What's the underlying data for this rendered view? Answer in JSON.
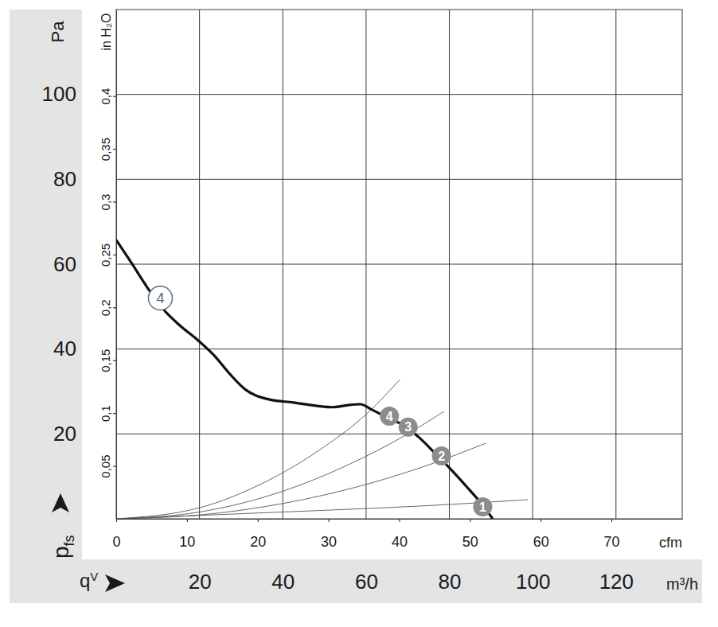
{
  "chart_data": {
    "type": "line",
    "y_unit": "Pa",
    "y_label": {
      "text": "p",
      "sub": "fs"
    },
    "y2_label": "in H₂O",
    "x_label": {
      "text": "q",
      "sub": "V"
    },
    "x_unit": "m³/h",
    "x2_unit": "cfm",
    "xlim": [
      0,
      135.9
    ],
    "xticks": [
      20,
      40,
      60,
      80,
      100,
      120
    ],
    "x2lim": [
      0,
      80
    ],
    "x2ticks": [
      0,
      10,
      20,
      30,
      40,
      50,
      60,
      70
    ],
    "ylim": [
      0,
      120
    ],
    "yticks": [
      20,
      40,
      60,
      80,
      100
    ],
    "y2lim": [
      0,
      0.4818
    ],
    "y2ticks": [
      {
        "value": 0.05,
        "label": "0,05"
      },
      {
        "value": 0.1,
        "label": "0,1"
      },
      {
        "value": 0.15,
        "label": "0,15"
      },
      {
        "value": 0.2,
        "label": "0,2"
      },
      {
        "value": 0.25,
        "label": "0,25"
      },
      {
        "value": 0.3,
        "label": "0,3"
      },
      {
        "value": 0.35,
        "label": "0,35"
      },
      {
        "value": 0.4,
        "label": "0,4"
      }
    ],
    "grid": true,
    "series": [
      {
        "color": "#111111",
        "x": [
          0,
          3.6,
          7.4,
          11.2,
          15.0,
          19.7,
          23.5,
          27.3,
          31.1,
          33.4,
          36.8,
          42.5,
          48.2,
          51.9,
          55.7,
          58.6,
          61.4,
          65.2,
          69.0,
          72.8,
          76.6,
          80.4,
          84.2,
          88.0,
          90.4
        ],
        "values": [
          65.7,
          60.4,
          54.6,
          49.5,
          45.8,
          42.0,
          38.5,
          34.1,
          30.4,
          29.1,
          28.1,
          27.4,
          26.6,
          26.3,
          26.8,
          27.0,
          25.7,
          23.8,
          22.0,
          19.1,
          15.4,
          11.6,
          7.5,
          3.2,
          0
        ]
      },
      {
        "color": "#555555",
        "x": [
          0,
          20,
          35,
          50,
          60,
          68.1
        ],
        "values": [
          0,
          2.6,
          8.3,
          17.0,
          24.6,
          32.8
        ]
      },
      {
        "color": "#555555",
        "x": [
          0,
          20,
          40,
          55,
          70,
          78.7
        ],
        "values": [
          0,
          1.6,
          6.5,
          12.4,
          20.0,
          25.3
        ]
      },
      {
        "color": "#555555",
        "x": [
          0,
          20,
          40,
          60,
          75,
          88.7
        ],
        "values": [
          0,
          0.9,
          3.6,
          8.1,
          12.7,
          17.8
        ]
      },
      {
        "color": "#555555",
        "x": [
          0,
          20,
          50,
          75,
          98.8
        ],
        "values": [
          0,
          0.8,
          2.0,
          3.1,
          4.5
        ]
      }
    ],
    "points": [
      {
        "label": "1",
        "x": 88.0,
        "y": 2.8
      },
      {
        "label": "2",
        "x": 78.1,
        "y": 14.8
      },
      {
        "label": "3",
        "x": 70.1,
        "y": 21.6
      },
      {
        "label": "4",
        "x": 65.6,
        "y": 24.2
      }
    ],
    "annotations": [
      {
        "text": "4",
        "x": 10.6,
        "y": 52.0
      }
    ]
  }
}
